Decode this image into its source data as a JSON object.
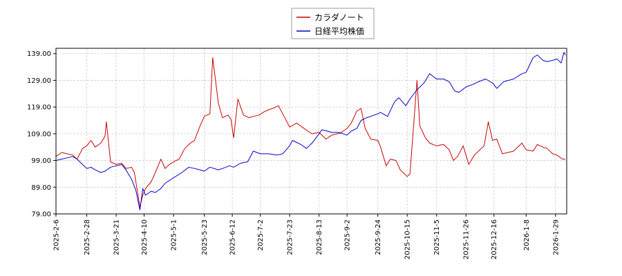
{
  "chart_data": {
    "type": "line",
    "ylim": [
      79,
      141
    ],
    "yticks": [
      79,
      89,
      99,
      109,
      119,
      129,
      139
    ],
    "ytick_labels": [
      "79.00",
      "89.00",
      "99.00",
      "109.00",
      "119.00",
      "129.00",
      "139.00"
    ],
    "xlim": [
      "2025-02-06",
      "2026-02-06"
    ],
    "xticks": [
      "2025-02-06",
      "2025-02-28",
      "2025-03-21",
      "2025-04-10",
      "2025-05-01",
      "2025-05-23",
      "2025-06-12",
      "2025-07-02",
      "2025-07-23",
      "2025-08-13",
      "2025-09-02",
      "2025-09-24",
      "2025-10-15",
      "2025-11-05",
      "2025-11-26",
      "2025-12-16",
      "2026-01-08",
      "2026-01-29"
    ],
    "xtick_labels": [
      "2025-2-6",
      "2025-2-28",
      "2025-3-21",
      "2025-4-10",
      "2025-5-1",
      "2025-5-23",
      "2025-6-12",
      "2025-7-2",
      "2025-7-23",
      "2025-8-13",
      "2025-9-2",
      "2025-9-24",
      "2025-10-15",
      "2025-11-5",
      "2025-11-26",
      "2025-12-16",
      "2026-1-8",
      "2026-1-29"
    ],
    "grid": true,
    "legend_position": "top-center",
    "series": [
      {
        "name": "カラダノート",
        "color": "#cc0000",
        "points": [
          [
            "2025-02-06",
            100.5
          ],
          [
            "2025-02-10",
            102.0
          ],
          [
            "2025-02-14",
            101.5
          ],
          [
            "2025-02-18",
            101.0
          ],
          [
            "2025-02-21",
            99.5
          ],
          [
            "2025-02-25",
            103.5
          ],
          [
            "2025-02-28",
            104.5
          ],
          [
            "2025-03-03",
            106.5
          ],
          [
            "2025-03-06",
            104.0
          ],
          [
            "2025-03-10",
            105.5
          ],
          [
            "2025-03-13",
            108.0
          ],
          [
            "2025-03-14",
            113.5
          ],
          [
            "2025-03-17",
            98.5
          ],
          [
            "2025-03-21",
            97.5
          ],
          [
            "2025-03-25",
            98.0
          ],
          [
            "2025-03-28",
            96.0
          ],
          [
            "2025-04-01",
            96.5
          ],
          [
            "2025-04-03",
            94.5
          ],
          [
            "2025-04-07",
            81.5
          ],
          [
            "2025-04-09",
            86.0
          ],
          [
            "2025-04-11",
            88.5
          ],
          [
            "2025-04-15",
            91.0
          ],
          [
            "2025-04-18",
            94.5
          ],
          [
            "2025-04-22",
            99.5
          ],
          [
            "2025-04-25",
            96.0
          ],
          [
            "2025-04-28",
            97.5
          ],
          [
            "2025-05-01",
            98.5
          ],
          [
            "2025-05-05",
            99.5
          ],
          [
            "2025-05-09",
            103.5
          ],
          [
            "2025-05-13",
            105.5
          ],
          [
            "2025-05-16",
            106.5
          ],
          [
            "2025-05-20",
            112.0
          ],
          [
            "2025-05-23",
            115.5
          ],
          [
            "2025-05-27",
            116.5
          ],
          [
            "2025-05-29",
            137.5
          ],
          [
            "2025-06-02",
            120.5
          ],
          [
            "2025-06-05",
            115.0
          ],
          [
            "2025-06-09",
            116.0
          ],
          [
            "2025-06-11",
            114.5
          ],
          [
            "2025-06-13",
            107.5
          ],
          [
            "2025-06-16",
            122.0
          ],
          [
            "2025-06-20",
            116.0
          ],
          [
            "2025-06-24",
            115.0
          ],
          [
            "2025-06-27",
            115.5
          ],
          [
            "2025-07-01",
            116.0
          ],
          [
            "2025-07-04",
            117.0
          ],
          [
            "2025-07-08",
            118.0
          ],
          [
            "2025-07-11",
            118.5
          ],
          [
            "2025-07-15",
            119.5
          ],
          [
            "2025-07-18",
            116.5
          ],
          [
            "2025-07-23",
            111.5
          ],
          [
            "2025-07-28",
            113.0
          ],
          [
            "2025-08-01",
            111.5
          ],
          [
            "2025-08-05",
            110.0
          ],
          [
            "2025-08-08",
            109.0
          ],
          [
            "2025-08-13",
            109.5
          ],
          [
            "2025-08-18",
            107.0
          ],
          [
            "2025-08-22",
            108.5
          ],
          [
            "2025-08-26",
            109.0
          ],
          [
            "2025-08-29",
            109.5
          ],
          [
            "2025-09-02",
            111.0
          ],
          [
            "2025-09-05",
            113.0
          ],
          [
            "2025-09-09",
            117.5
          ],
          [
            "2025-09-12",
            118.5
          ],
          [
            "2025-09-15",
            111.0
          ],
          [
            "2025-09-19",
            107.0
          ],
          [
            "2025-09-24",
            106.5
          ],
          [
            "2025-09-26",
            104.0
          ],
          [
            "2025-09-30",
            97.0
          ],
          [
            "2025-10-03",
            99.5
          ],
          [
            "2025-10-07",
            99.0
          ],
          [
            "2025-10-10",
            95.5
          ],
          [
            "2025-10-15",
            93.0
          ],
          [
            "2025-10-17",
            94.0
          ],
          [
            "2025-10-22",
            129.0
          ],
          [
            "2025-10-24",
            112.0
          ],
          [
            "2025-10-28",
            107.5
          ],
          [
            "2025-10-31",
            105.5
          ],
          [
            "2025-11-05",
            104.5
          ],
          [
            "2025-11-10",
            105.0
          ],
          [
            "2025-11-14",
            103.0
          ],
          [
            "2025-11-17",
            99.0
          ],
          [
            "2025-11-20",
            100.5
          ],
          [
            "2025-11-24",
            104.5
          ],
          [
            "2025-11-28",
            97.5
          ],
          [
            "2025-12-02",
            101.0
          ],
          [
            "2025-12-05",
            102.5
          ],
          [
            "2025-12-09",
            104.5
          ],
          [
            "2025-12-12",
            113.5
          ],
          [
            "2025-12-15",
            106.5
          ],
          [
            "2025-12-18",
            107.0
          ],
          [
            "2025-12-22",
            101.5
          ],
          [
            "2025-12-26",
            102.0
          ],
          [
            "2025-12-30",
            102.5
          ],
          [
            "2026-01-05",
            105.5
          ],
          [
            "2026-01-08",
            103.0
          ],
          [
            "2026-01-13",
            102.5
          ],
          [
            "2026-01-16",
            105.0
          ],
          [
            "2026-01-20",
            104.0
          ],
          [
            "2026-01-23",
            103.5
          ],
          [
            "2026-01-27",
            101.5
          ],
          [
            "2026-01-30",
            101.0
          ],
          [
            "2026-02-03",
            99.5
          ],
          [
            "2026-02-05",
            99.5
          ]
        ]
      },
      {
        "name": "日経平均株価",
        "color": "#0000cc",
        "points": [
          [
            "2025-02-06",
            99.0
          ],
          [
            "2025-02-10",
            99.5
          ],
          [
            "2025-02-14",
            100.0
          ],
          [
            "2025-02-18",
            100.5
          ],
          [
            "2025-02-21",
            99.5
          ],
          [
            "2025-02-25",
            97.5
          ],
          [
            "2025-02-28",
            96.0
          ],
          [
            "2025-03-03",
            96.5
          ],
          [
            "2025-03-06",
            95.5
          ],
          [
            "2025-03-10",
            94.5
          ],
          [
            "2025-03-13",
            95.0
          ],
          [
            "2025-03-17",
            96.5
          ],
          [
            "2025-03-21",
            97.0
          ],
          [
            "2025-03-25",
            97.5
          ],
          [
            "2025-03-28",
            95.5
          ],
          [
            "2025-04-01",
            92.0
          ],
          [
            "2025-04-04",
            88.0
          ],
          [
            "2025-04-07",
            80.5
          ],
          [
            "2025-04-09",
            88.5
          ],
          [
            "2025-04-11",
            86.0
          ],
          [
            "2025-04-15",
            87.5
          ],
          [
            "2025-04-18",
            87.0
          ],
          [
            "2025-04-22",
            88.5
          ],
          [
            "2025-04-25",
            90.5
          ],
          [
            "2025-05-01",
            92.5
          ],
          [
            "2025-05-07",
            94.5
          ],
          [
            "2025-05-12",
            96.5
          ],
          [
            "2025-05-16",
            96.0
          ],
          [
            "2025-05-20",
            95.5
          ],
          [
            "2025-05-23",
            95.0
          ],
          [
            "2025-05-27",
            96.5
          ],
          [
            "2025-06-02",
            95.5
          ],
          [
            "2025-06-05",
            96.0
          ],
          [
            "2025-06-10",
            97.0
          ],
          [
            "2025-06-13",
            96.5
          ],
          [
            "2025-06-18",
            98.0
          ],
          [
            "2025-06-23",
            98.5
          ],
          [
            "2025-06-27",
            102.5
          ],
          [
            "2025-07-02",
            101.5
          ],
          [
            "2025-07-08",
            101.5
          ],
          [
            "2025-07-14",
            101.0
          ],
          [
            "2025-07-18",
            101.5
          ],
          [
            "2025-07-23",
            104.5
          ],
          [
            "2025-07-25",
            106.5
          ],
          [
            "2025-07-31",
            105.0
          ],
          [
            "2025-08-04",
            103.5
          ],
          [
            "2025-08-08",
            105.5
          ],
          [
            "2025-08-13",
            109.0
          ],
          [
            "2025-08-15",
            110.5
          ],
          [
            "2025-08-19",
            110.0
          ],
          [
            "2025-08-22",
            109.5
          ],
          [
            "2025-08-27",
            109.5
          ],
          [
            "2025-09-02",
            108.5
          ],
          [
            "2025-09-05",
            110.0
          ],
          [
            "2025-09-09",
            111.0
          ],
          [
            "2025-09-12",
            114.0
          ],
          [
            "2025-09-16",
            115.0
          ],
          [
            "2025-09-19",
            115.5
          ],
          [
            "2025-09-24",
            116.5
          ],
          [
            "2025-09-26",
            117.0
          ],
          [
            "2025-10-01",
            115.5
          ],
          [
            "2025-10-06",
            121.0
          ],
          [
            "2025-10-09",
            122.5
          ],
          [
            "2025-10-14",
            119.5
          ],
          [
            "2025-10-17",
            122.0
          ],
          [
            "2025-10-22",
            125.5
          ],
          [
            "2025-10-27",
            128.0
          ],
          [
            "2025-10-31",
            131.5
          ],
          [
            "2025-11-05",
            129.5
          ],
          [
            "2025-11-10",
            129.5
          ],
          [
            "2025-11-14",
            128.5
          ],
          [
            "2025-11-18",
            125.0
          ],
          [
            "2025-11-21",
            124.5
          ],
          [
            "2025-11-26",
            126.5
          ],
          [
            "2025-12-01",
            127.5
          ],
          [
            "2025-12-05",
            128.5
          ],
          [
            "2025-12-10",
            129.5
          ],
          [
            "2025-12-15",
            128.0
          ],
          [
            "2025-12-18",
            126.0
          ],
          [
            "2025-12-23",
            128.5
          ],
          [
            "2025-12-30",
            129.5
          ],
          [
            "2026-01-05",
            131.5
          ],
          [
            "2026-01-08",
            132.0
          ],
          [
            "2026-01-13",
            137.5
          ],
          [
            "2026-01-16",
            138.5
          ],
          [
            "2026-01-20",
            136.5
          ],
          [
            "2026-01-23",
            136.0
          ],
          [
            "2026-01-27",
            136.5
          ],
          [
            "2026-01-30",
            137.0
          ],
          [
            "2026-02-02",
            135.5
          ],
          [
            "2026-02-04",
            139.5
          ],
          [
            "2026-02-05",
            138.5
          ]
        ]
      }
    ]
  }
}
